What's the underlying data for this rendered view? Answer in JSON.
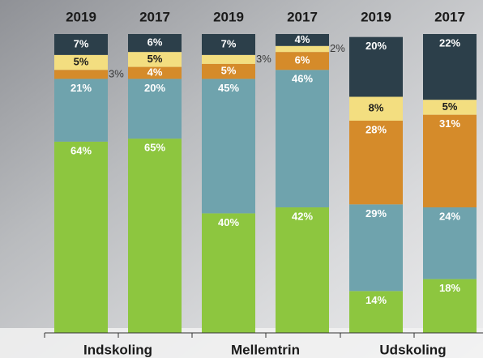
{
  "chart_data": {
    "type": "stacked-bar",
    "groups": [
      "Indskoling",
      "Mellemtrin",
      "Udskoling"
    ],
    "categories": [
      "2019",
      "2017",
      "2019",
      "2017",
      "2019",
      "2017"
    ],
    "ylim": [
      0,
      100
    ],
    "series": [
      {
        "color": "#8dc63f",
        "values": [
          64,
          65,
          40,
          42,
          14,
          18
        ],
        "value_labels": [
          "64%",
          "65%",
          "40%",
          "42%",
          "14%",
          "18%"
        ]
      },
      {
        "color": "#6fa3ad",
        "values": [
          21,
          20,
          45,
          46,
          29,
          24
        ],
        "value_labels": [
          "21%",
          "20%",
          "45%",
          "46%",
          "29%",
          "24%"
        ]
      },
      {
        "color": "#d58b2a",
        "values": [
          3,
          4,
          5,
          6,
          28,
          31
        ],
        "value_labels": [
          "3%",
          "4%",
          "5%",
          "6%",
          "28%",
          "31%"
        ]
      },
      {
        "color": "#f3de80",
        "values": [
          5,
          5,
          3,
          2,
          8,
          5
        ],
        "value_labels": [
          "5%",
          "5%",
          "3%",
          "2%",
          "8%",
          "5%"
        ]
      },
      {
        "color": "#2c3f4a",
        "values": [
          7,
          6,
          7,
          4,
          20,
          22
        ],
        "value_labels": [
          "7%",
          "6%",
          "7%",
          "4%",
          "20%",
          "22%"
        ]
      }
    ]
  }
}
